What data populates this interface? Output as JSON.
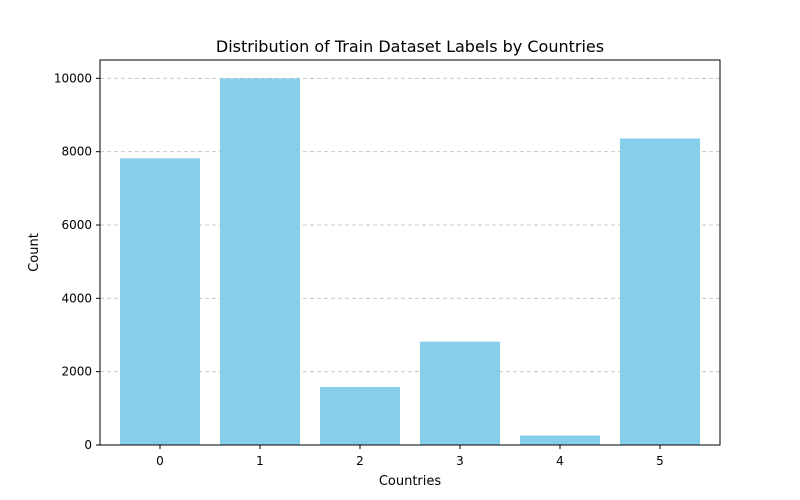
{
  "chart_data": {
    "type": "bar",
    "title": "Distribution of Train Dataset Labels by Countries",
    "xlabel": "Countries",
    "ylabel": "Count",
    "categories": [
      "0",
      "1",
      "2",
      "3",
      "4",
      "5"
    ],
    "values": [
      7820,
      10000,
      1580,
      2820,
      260,
      8360
    ],
    "ylim": [
      0,
      10500
    ],
    "yticks": [
      "0",
      "2000",
      "4000",
      "6000",
      "8000",
      "10000"
    ],
    "grid": "y-dashed",
    "legend": "none",
    "colors": {
      "bar": "#87ceeb",
      "grid": "#c8c8c8",
      "axis": "#000000"
    }
  }
}
